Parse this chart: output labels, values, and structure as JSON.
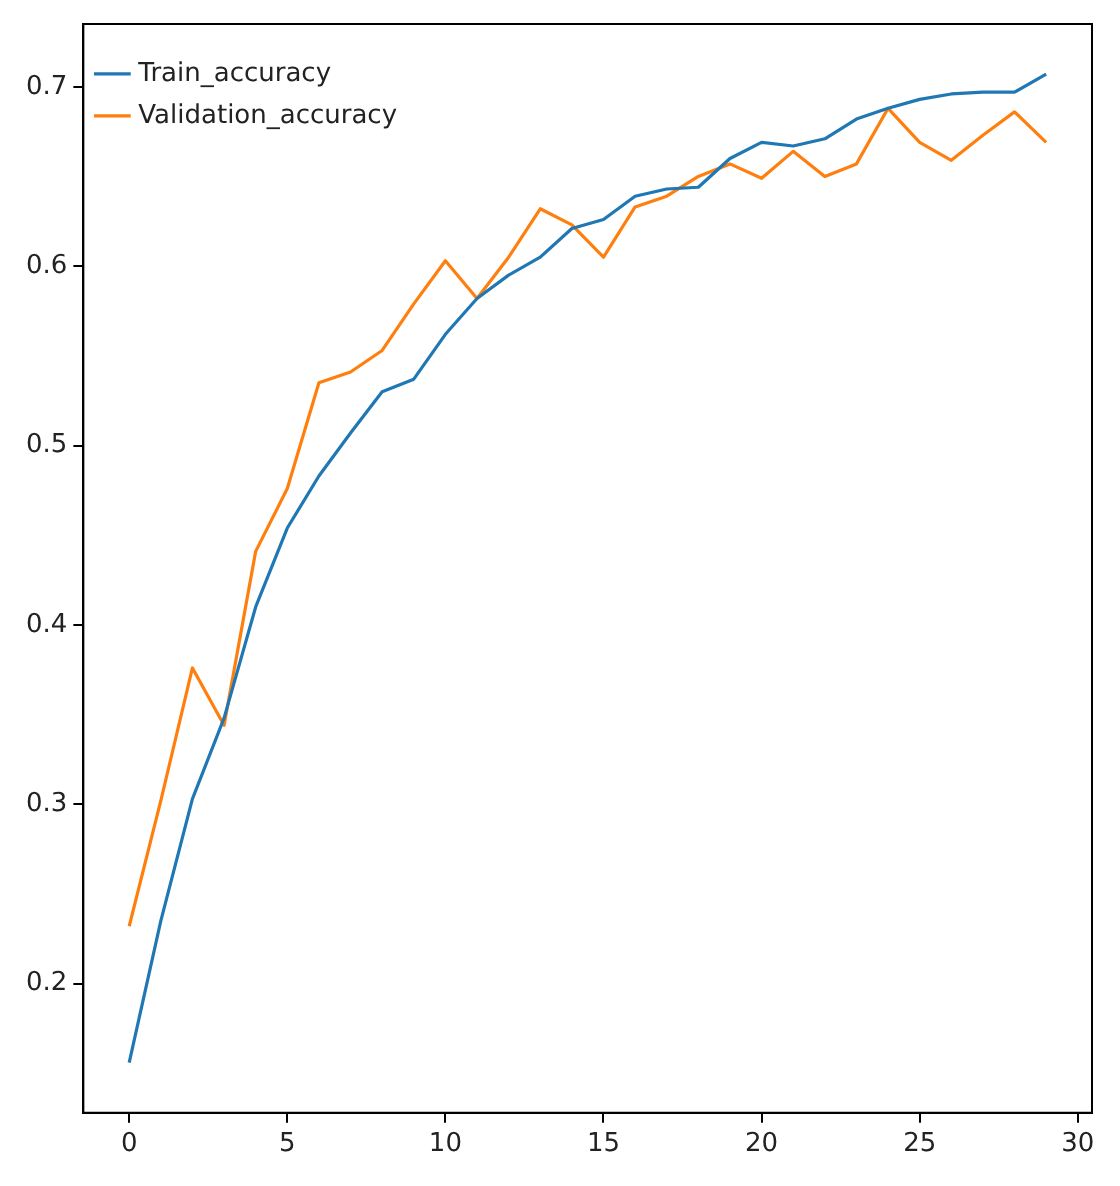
{
  "chart_data": {
    "type": "line",
    "x": [
      0,
      1,
      2,
      3,
      4,
      5,
      6,
      7,
      8,
      9,
      10,
      11,
      12,
      13,
      14,
      15,
      16,
      17,
      18,
      19,
      20,
      21,
      22,
      23,
      24,
      25,
      26,
      27,
      28,
      29
    ],
    "series": [
      {
        "name": "Train_accuracy",
        "color": "#1f77b4",
        "values": [
          0.156,
          0.235,
          0.303,
          0.348,
          0.41,
          0.454,
          0.483,
          0.507,
          0.53,
          0.537,
          0.562,
          0.582,
          0.595,
          0.605,
          0.621,
          0.626,
          0.639,
          0.643,
          0.644,
          0.66,
          0.669,
          0.667,
          0.671,
          0.682,
          0.688,
          0.693,
          0.696,
          0.697,
          0.697,
          0.707
        ]
      },
      {
        "name": "Validation_accuracy",
        "color": "#ff7f0e",
        "values": [
          0.232,
          0.302,
          0.376,
          0.344,
          0.441,
          0.476,
          0.535,
          0.541,
          0.553,
          0.579,
          0.603,
          0.582,
          0.605,
          0.632,
          0.623,
          0.605,
          0.633,
          0.639,
          0.65,
          0.657,
          0.649,
          0.664,
          0.65,
          0.657,
          0.688,
          0.669,
          0.659,
          0.673,
          0.686,
          0.669
        ]
      }
    ],
    "xlim": [
      -1.45,
      30.45
    ],
    "xticks": [
      0,
      5,
      10,
      15,
      20,
      25,
      30
    ],
    "ylim": [
      0.128,
      0.735
    ],
    "yticks": [
      0.2,
      0.3,
      0.4,
      0.5,
      0.6,
      0.7
    ],
    "grid": false,
    "legend": "top left",
    "marker": "none",
    "line_style": "solid"
  }
}
